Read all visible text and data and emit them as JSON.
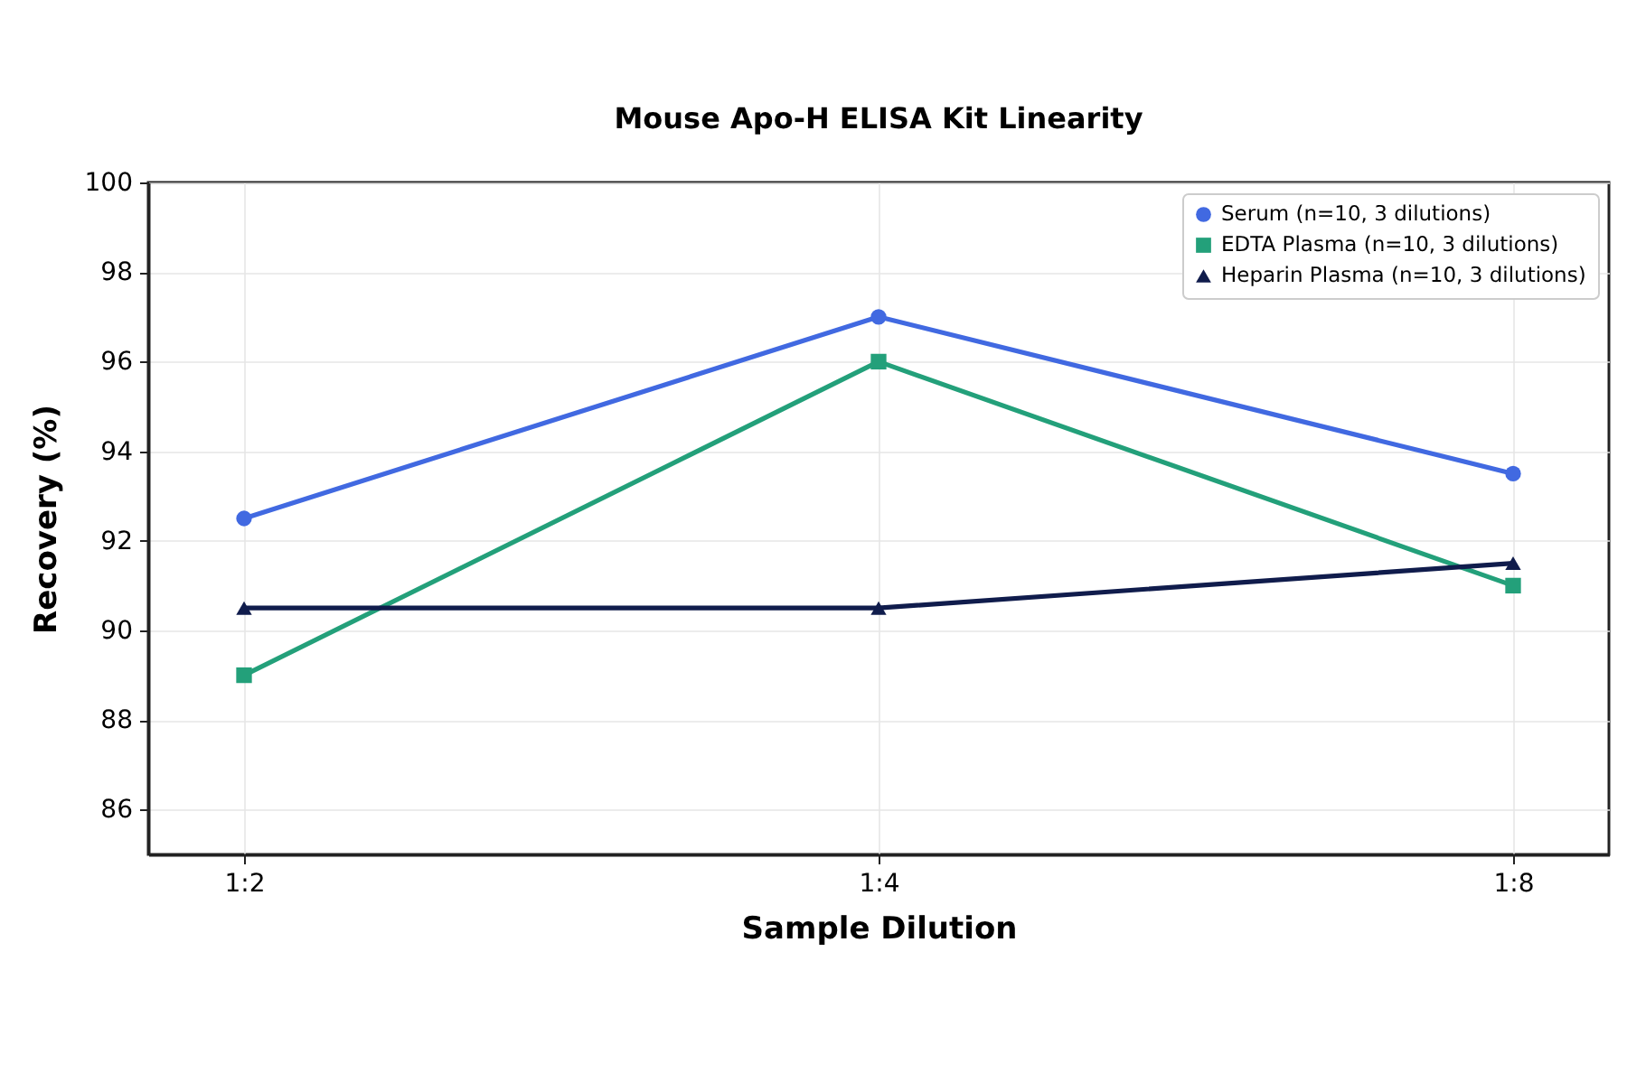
{
  "chart_data": {
    "type": "line",
    "title": "Mouse Apo-H ELISA Kit Linearity",
    "xlabel": "Sample Dilution",
    "ylabel": "Recovery (%)",
    "categories": [
      "1:2",
      "1:4",
      "1:8"
    ],
    "series": [
      {
        "name": "Serum (n=10, 3 dilutions)",
        "color": "#4169e1",
        "marker": "circle",
        "values": [
          92.5,
          97,
          93.5
        ]
      },
      {
        "name": "EDTA Plasma (n=10, 3 dilutions)",
        "color": "#23a07a",
        "marker": "square",
        "values": [
          89,
          96,
          91
        ]
      },
      {
        "name": "Heparin Plasma (n=10, 3 dilutions)",
        "color": "#101c4c",
        "marker": "triangle",
        "values": [
          90.5,
          90.5,
          91.5
        ]
      }
    ],
    "ylim": [
      85,
      100
    ],
    "yticks": [
      86,
      88,
      90,
      92,
      94,
      96,
      98,
      100
    ],
    "grid": true,
    "legend": "top right"
  }
}
